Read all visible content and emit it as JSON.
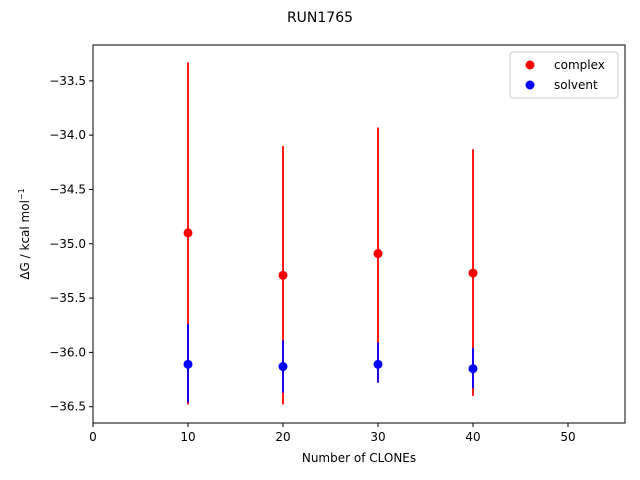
{
  "chart_data": {
    "type": "scatter",
    "title": "RUN1765",
    "xlabel": "Number of CLONEs",
    "ylabel": "ΔG / kcal mol",
    "ylabel_superscript": "−1",
    "xlim": [
      0,
      56
    ],
    "ylim": [
      -36.65,
      -33.17
    ],
    "xticks": [
      0,
      10,
      20,
      30,
      40,
      50
    ],
    "yticks": [
      -33.5,
      -34.0,
      -34.5,
      -35.0,
      -35.5,
      -36.0,
      -36.5
    ],
    "ytick_labels": [
      "−33.5",
      "−34.0",
      "−34.5",
      "−35.0",
      "−35.5",
      "−36.0",
      "−36.5"
    ],
    "legend_position": "top-right",
    "series": [
      {
        "name": "complex",
        "color": "#ff0000",
        "x": [
          10,
          20,
          30,
          40
        ],
        "y": [
          -34.9,
          -35.29,
          -35.09,
          -35.27
        ],
        "yerr_low": [
          -36.48,
          -36.48,
          -36.26,
          -36.4
        ],
        "yerr_high": [
          -33.33,
          -34.1,
          -33.93,
          -34.13
        ]
      },
      {
        "name": "solvent",
        "color": "#0000ff",
        "x": [
          10,
          20,
          30,
          40
        ],
        "y": [
          -36.11,
          -36.13,
          -36.11,
          -36.15
        ],
        "yerr_low": [
          -36.46,
          -36.37,
          -36.28,
          -36.33
        ],
        "yerr_high": [
          -35.74,
          -35.89,
          -35.91,
          -35.96
        ]
      }
    ]
  }
}
